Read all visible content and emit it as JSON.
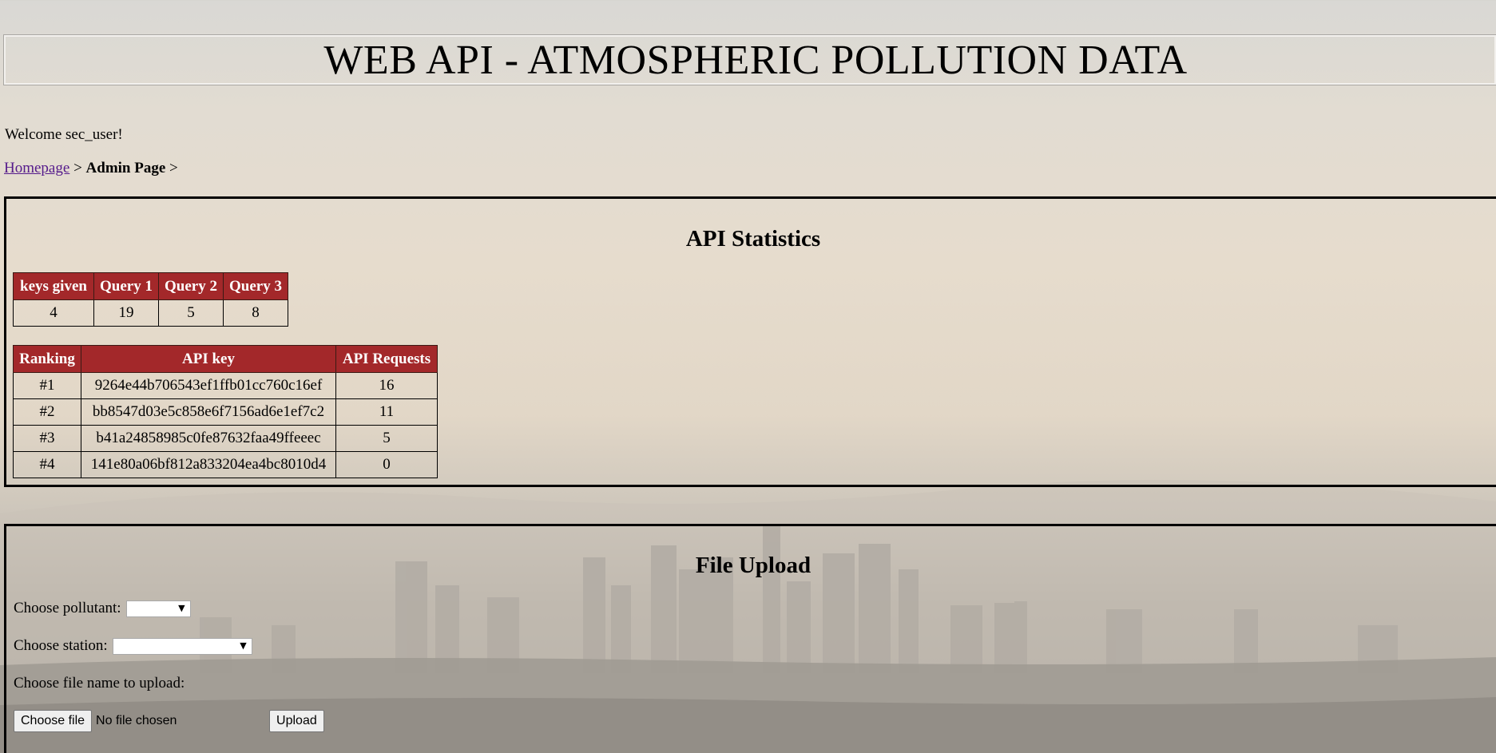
{
  "header": {
    "title": "WEB API - ATMOSPHERIC POLLUTION DATA"
  },
  "welcome": "Welcome sec_user!",
  "breadcrumb": {
    "home": "Homepage",
    "sep1": " > ",
    "current": "Admin Page",
    "sep2": " >"
  },
  "stats": {
    "title": "API Statistics",
    "counts": {
      "headers": [
        "keys given",
        "Query 1",
        "Query 2",
        "Query 3"
      ],
      "values": [
        "4",
        "19",
        "5",
        "8"
      ]
    },
    "ranking": {
      "headers": [
        "Ranking",
        "API key",
        "API Requests"
      ],
      "rows": [
        [
          "#1",
          "9264e44b706543ef1ffb01cc760c16ef",
          "16"
        ],
        [
          "#2",
          "bb8547d03e5c858e6f7156ad6e1ef7c2",
          "11"
        ],
        [
          "#3",
          "b41a24858985c0fe87632faa49ffeeec",
          "5"
        ],
        [
          "#4",
          "141e80a06bf812a833204ea4bc8010d4",
          "0"
        ]
      ]
    }
  },
  "upload": {
    "title": "File Upload",
    "pollutant_label": "Choose pollutant:",
    "pollutant_value": "",
    "station_label": "Choose station:",
    "station_value": "",
    "file_label": "Choose file name to upload:",
    "choose_file_button": "Choose file",
    "no_file_text": "No file chosen",
    "upload_button": "Upload"
  },
  "colors": {
    "table_header_bg": "#a3282a",
    "link": "#551a8b"
  },
  "icons": {
    "dropdown": "chevron-down-icon"
  }
}
